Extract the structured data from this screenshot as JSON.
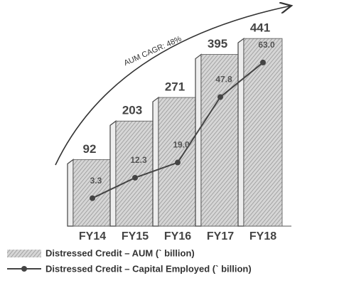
{
  "chart_data": {
    "type": "bar-line",
    "annotation": "AUM CAGR: 48%",
    "categories": [
      "FY14",
      "FY15",
      "FY16",
      "FY17",
      "FY18"
    ],
    "series": [
      {
        "name": "Distressed Credit – AUM (` billion)",
        "color": "#b5b5b5",
        "values": [
          92,
          203,
          271,
          395,
          441
        ]
      },
      {
        "name": "Distressed Credit – Capital Employed (` billion)",
        "color": "#444444",
        "values": [
          3.3,
          12.3,
          19.0,
          47.8,
          63.0
        ],
        "value_labels": [
          "3.3",
          "12.3",
          "19.0",
          "47.8",
          "63.0"
        ],
        "axis": "y2"
      }
    ],
    "ylim": [
      -100,
      470
    ],
    "y2lim": [
      -9,
      78
    ]
  }
}
